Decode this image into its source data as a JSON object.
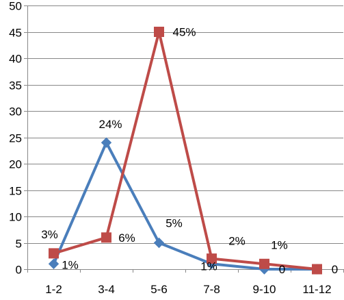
{
  "chart_data": {
    "type": "line",
    "categories": [
      "1-2",
      "3-4",
      "5-6",
      "7-8",
      "9-10",
      "11-12"
    ],
    "ylim": [
      0,
      50
    ],
    "y_ticks": [
      "0",
      "5",
      "10",
      "15",
      "20",
      "25",
      "30",
      "35",
      "40",
      "45",
      "50"
    ],
    "grid": true,
    "legend": "none",
    "title": "",
    "xlabel": "",
    "ylabel": "",
    "series": [
      {
        "color": "#4a7ebb",
        "marker": "diamond",
        "values": [
          1,
          24,
          5,
          1,
          0,
          0
        ],
        "labels": [
          "1%",
          "24%",
          "5%",
          "1%",
          "0",
          ""
        ]
      },
      {
        "color": "#be4b48",
        "marker": "square",
        "values": [
          3,
          6,
          45,
          2,
          1,
          0
        ],
        "labels": [
          "3%",
          "6%",
          "45%",
          "2%",
          "1%",
          "0"
        ]
      }
    ]
  }
}
